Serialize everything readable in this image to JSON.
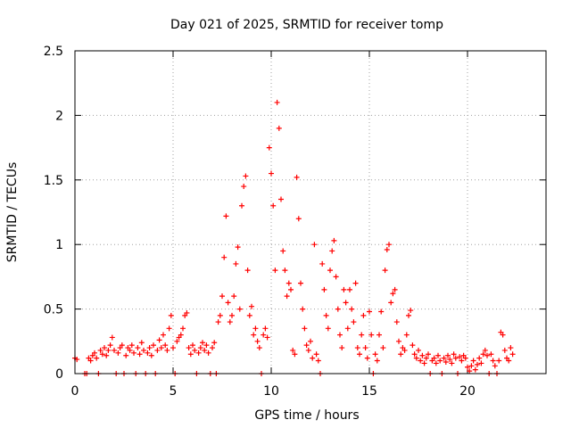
{
  "chart_data": {
    "type": "scatter",
    "title": "Day 021 of 2025, SRMTID for receiver tomp",
    "xlabel": "GPS time / hours",
    "ylabel": "SRMTID / TECUs",
    "xlim": [
      0,
      24
    ],
    "ylim": [
      0,
      2.5
    ],
    "x_ticks": [
      0,
      5,
      10,
      15,
      20
    ],
    "x_tick_labels": [
      "0",
      "5",
      "10",
      "15",
      "20"
    ],
    "y_ticks": [
      0,
      0.5,
      1,
      1.5,
      2,
      2.5
    ],
    "y_tick_labels": [
      "0",
      "0.5",
      "1",
      "1.5",
      "2",
      "2.5"
    ],
    "grid": true,
    "marker": "+",
    "series": [
      {
        "name": "SRMTID",
        "color": "#ff0000",
        "points": [
          [
            0.0,
            0.12
          ],
          [
            0.1,
            0.11
          ],
          [
            0.5,
            0.0
          ],
          [
            0.6,
            0.0
          ],
          [
            0.7,
            0.12
          ],
          [
            0.8,
            0.1
          ],
          [
            0.9,
            0.14
          ],
          [
            1.0,
            0.16
          ],
          [
            1.1,
            0.12
          ],
          [
            1.2,
            0.0
          ],
          [
            1.3,
            0.18
          ],
          [
            1.4,
            0.15
          ],
          [
            1.5,
            0.2
          ],
          [
            1.6,
            0.14
          ],
          [
            1.7,
            0.18
          ],
          [
            1.8,
            0.22
          ],
          [
            1.9,
            0.28
          ],
          [
            2.0,
            0.18
          ],
          [
            2.1,
            0.0
          ],
          [
            2.2,
            0.16
          ],
          [
            2.3,
            0.2
          ],
          [
            2.4,
            0.22
          ],
          [
            2.5,
            0.0
          ],
          [
            2.6,
            0.14
          ],
          [
            2.7,
            0.2
          ],
          [
            2.8,
            0.18
          ],
          [
            2.9,
            0.22
          ],
          [
            3.0,
            0.16
          ],
          [
            3.1,
            0.0
          ],
          [
            3.2,
            0.2
          ],
          [
            3.3,
            0.15
          ],
          [
            3.4,
            0.24
          ],
          [
            3.5,
            0.18
          ],
          [
            3.6,
            0.0
          ],
          [
            3.7,
            0.16
          ],
          [
            3.8,
            0.2
          ],
          [
            3.9,
            0.14
          ],
          [
            4.0,
            0.22
          ],
          [
            4.1,
            0.0
          ],
          [
            4.2,
            0.18
          ],
          [
            4.3,
            0.26
          ],
          [
            4.4,
            0.2
          ],
          [
            4.5,
            0.3
          ],
          [
            4.6,
            0.22
          ],
          [
            4.7,
            0.18
          ],
          [
            4.8,
            0.35
          ],
          [
            4.9,
            0.45
          ],
          [
            5.0,
            0.2
          ],
          [
            5.1,
            0.0
          ],
          [
            5.2,
            0.25
          ],
          [
            5.3,
            0.28
          ],
          [
            5.4,
            0.3
          ],
          [
            5.5,
            0.35
          ],
          [
            5.6,
            0.45
          ],
          [
            5.7,
            0.47
          ],
          [
            5.8,
            0.2
          ],
          [
            5.9,
            0.15
          ],
          [
            6.0,
            0.22
          ],
          [
            6.1,
            0.18
          ],
          [
            6.2,
            0.0
          ],
          [
            6.3,
            0.16
          ],
          [
            6.4,
            0.2
          ],
          [
            6.5,
            0.24
          ],
          [
            6.6,
            0.18
          ],
          [
            6.7,
            0.22
          ],
          [
            6.8,
            0.16
          ],
          [
            6.9,
            0.0
          ],
          [
            7.0,
            0.2
          ],
          [
            7.1,
            0.24
          ],
          [
            7.2,
            0.0
          ],
          [
            7.3,
            0.4
          ],
          [
            7.4,
            0.45
          ],
          [
            7.5,
            0.6
          ],
          [
            7.6,
            0.9
          ],
          [
            7.7,
            1.22
          ],
          [
            7.8,
            0.55
          ],
          [
            7.9,
            0.4
          ],
          [
            8.0,
            0.45
          ],
          [
            8.1,
            0.6
          ],
          [
            8.2,
            0.85
          ],
          [
            8.3,
            0.98
          ],
          [
            8.4,
            0.5
          ],
          [
            8.5,
            1.3
          ],
          [
            8.6,
            1.45
          ],
          [
            8.7,
            1.53
          ],
          [
            8.8,
            0.8
          ],
          [
            8.9,
            0.45
          ],
          [
            9.0,
            0.52
          ],
          [
            9.1,
            0.3
          ],
          [
            9.2,
            0.35
          ],
          [
            9.3,
            0.25
          ],
          [
            9.4,
            0.2
          ],
          [
            9.5,
            0.0
          ],
          [
            9.6,
            0.3
          ],
          [
            9.7,
            0.35
          ],
          [
            9.8,
            0.28
          ],
          [
            9.9,
            1.75
          ],
          [
            10.0,
            1.55
          ],
          [
            10.1,
            1.3
          ],
          [
            10.2,
            0.8
          ],
          [
            10.3,
            2.1
          ],
          [
            10.4,
            1.9
          ],
          [
            10.5,
            1.35
          ],
          [
            10.6,
            0.95
          ],
          [
            10.7,
            0.8
          ],
          [
            10.8,
            0.6
          ],
          [
            10.9,
            0.7
          ],
          [
            11.0,
            0.65
          ],
          [
            11.1,
            0.18
          ],
          [
            11.2,
            0.15
          ],
          [
            11.3,
            1.52
          ],
          [
            11.4,
            1.2
          ],
          [
            11.5,
            0.7
          ],
          [
            11.6,
            0.5
          ],
          [
            11.7,
            0.35
          ],
          [
            11.8,
            0.22
          ],
          [
            11.9,
            0.18
          ],
          [
            12.0,
            0.25
          ],
          [
            12.1,
            0.12
          ],
          [
            12.2,
            1.0
          ],
          [
            12.3,
            0.15
          ],
          [
            12.4,
            0.1
          ],
          [
            12.5,
            0.0
          ],
          [
            12.6,
            0.85
          ],
          [
            12.7,
            0.65
          ],
          [
            12.8,
            0.45
          ],
          [
            12.9,
            0.35
          ],
          [
            13.0,
            0.8
          ],
          [
            13.1,
            0.95
          ],
          [
            13.2,
            1.03
          ],
          [
            13.3,
            0.75
          ],
          [
            13.4,
            0.5
          ],
          [
            13.5,
            0.3
          ],
          [
            13.6,
            0.2
          ],
          [
            13.7,
            0.65
          ],
          [
            13.8,
            0.55
          ],
          [
            13.9,
            0.35
          ],
          [
            14.0,
            0.65
          ],
          [
            14.1,
            0.5
          ],
          [
            14.2,
            0.4
          ],
          [
            14.3,
            0.7
          ],
          [
            14.4,
            0.2
          ],
          [
            14.5,
            0.15
          ],
          [
            14.6,
            0.3
          ],
          [
            14.7,
            0.45
          ],
          [
            14.8,
            0.2
          ],
          [
            14.9,
            0.12
          ],
          [
            15.0,
            0.48
          ],
          [
            15.1,
            0.3
          ],
          [
            15.2,
            0.0
          ],
          [
            15.3,
            0.15
          ],
          [
            15.4,
            0.1
          ],
          [
            15.5,
            0.3
          ],
          [
            15.6,
            0.48
          ],
          [
            15.7,
            0.2
          ],
          [
            15.8,
            0.8
          ],
          [
            15.9,
            0.96
          ],
          [
            16.0,
            1.0
          ],
          [
            16.1,
            0.55
          ],
          [
            16.2,
            0.62
          ],
          [
            16.3,
            0.65
          ],
          [
            16.4,
            0.4
          ],
          [
            16.5,
            0.25
          ],
          [
            16.6,
            0.15
          ],
          [
            16.7,
            0.2
          ],
          [
            16.8,
            0.18
          ],
          [
            16.9,
            0.3
          ],
          [
            17.0,
            0.45
          ],
          [
            17.1,
            0.49
          ],
          [
            17.2,
            0.22
          ],
          [
            17.3,
            0.15
          ],
          [
            17.4,
            0.12
          ],
          [
            17.5,
            0.18
          ],
          [
            17.6,
            0.1
          ],
          [
            17.7,
            0.14
          ],
          [
            17.8,
            0.08
          ],
          [
            17.9,
            0.12
          ],
          [
            18.0,
            0.15
          ],
          [
            18.1,
            0.0
          ],
          [
            18.2,
            0.1
          ],
          [
            18.3,
            0.12
          ],
          [
            18.4,
            0.08
          ],
          [
            18.5,
            0.14
          ],
          [
            18.6,
            0.1
          ],
          [
            18.7,
            0.0
          ],
          [
            18.8,
            0.12
          ],
          [
            18.9,
            0.09
          ],
          [
            19.0,
            0.14
          ],
          [
            19.1,
            0.11
          ],
          [
            19.2,
            0.08
          ],
          [
            19.3,
            0.15
          ],
          [
            19.4,
            0.12
          ],
          [
            19.5,
            0.0
          ],
          [
            19.6,
            0.13
          ],
          [
            19.7,
            0.1
          ],
          [
            19.8,
            0.14
          ],
          [
            19.9,
            0.12
          ],
          [
            20.0,
            0.05
          ],
          [
            20.1,
            0.02
          ],
          [
            20.2,
            0.06
          ],
          [
            20.3,
            0.1
          ],
          [
            20.4,
            0.03
          ],
          [
            20.5,
            0.07
          ],
          [
            20.6,
            0.12
          ],
          [
            20.7,
            0.08
          ],
          [
            20.8,
            0.15
          ],
          [
            20.9,
            0.18
          ],
          [
            21.0,
            0.14
          ],
          [
            21.1,
            0.0
          ],
          [
            21.2,
            0.15
          ],
          [
            21.3,
            0.1
          ],
          [
            21.4,
            0.06
          ],
          [
            21.5,
            0.0
          ],
          [
            21.6,
            0.1
          ],
          [
            21.7,
            0.32
          ],
          [
            21.8,
            0.3
          ],
          [
            21.9,
            0.18
          ],
          [
            22.0,
            0.12
          ],
          [
            22.1,
            0.1
          ],
          [
            22.2,
            0.2
          ],
          [
            22.3,
            0.15
          ]
        ]
      }
    ]
  }
}
